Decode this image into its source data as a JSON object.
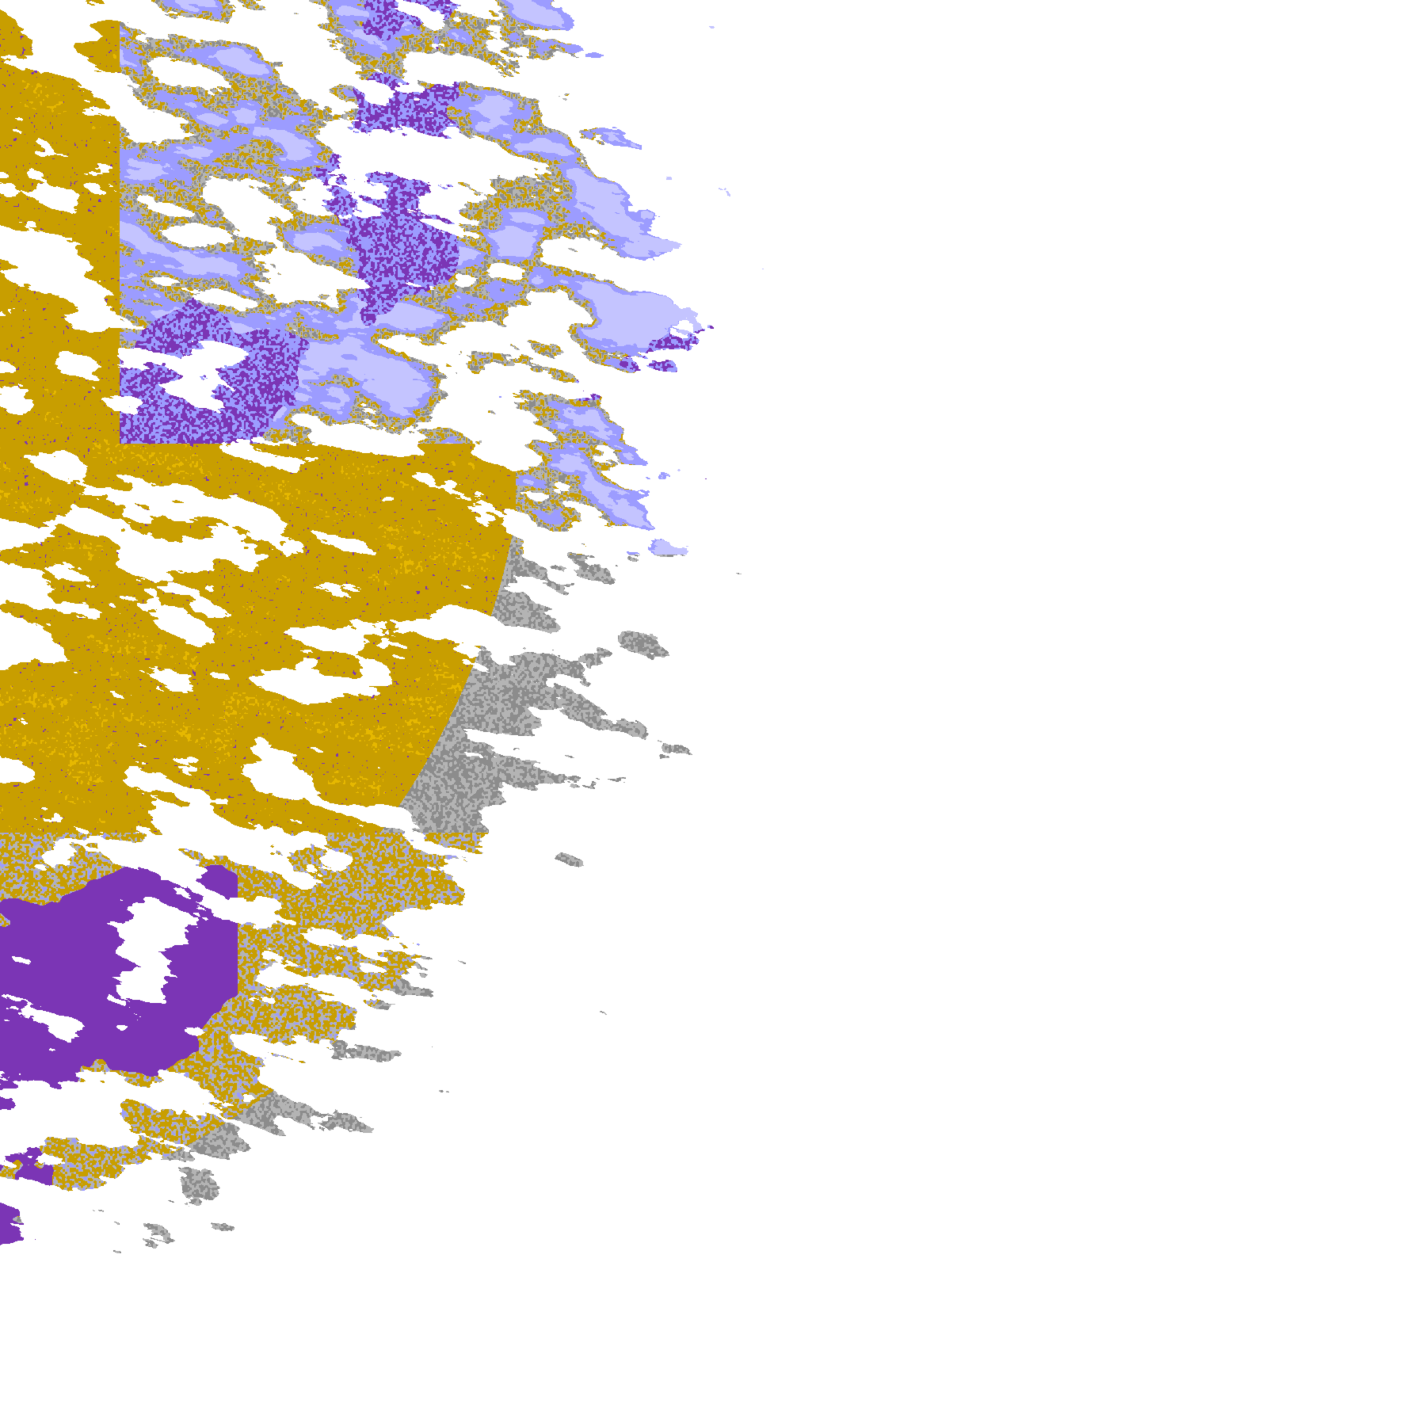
{
  "image": {
    "kind": "satellite cloud classification full-disk view (western limb)",
    "background": "#ffffff",
    "palette": {
      "low_cloud": "#c89e00",
      "low_cloud_bright": "#e6b800",
      "thick_high_cloud": "#7b35b5",
      "magenta_cloud": "#c050e0",
      "mid_cloud_light": "#c4c4ff",
      "mid_cloud": "#9c9cff",
      "thin_cloud_light": "#b4b4b4",
      "thin_cloud": "#8c8c8c",
      "clear": "#ffffff"
    }
  }
}
